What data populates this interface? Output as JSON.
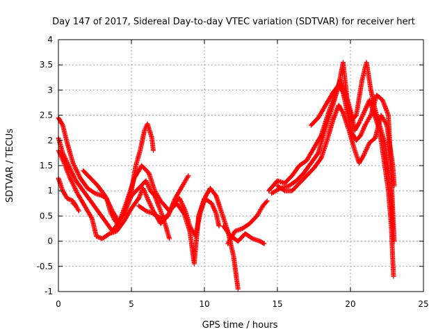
{
  "chart_data": {
    "type": "scatter",
    "title": "Day 147 of 2017, Sidereal Day-to-day VTEC variation (SDTVAR) for receiver hert",
    "xlabel": "GPS time / hours",
    "ylabel": "SDTVAR / TECUs",
    "xlim": [
      0,
      25
    ],
    "ylim": [
      -1,
      4
    ],
    "xticks": [
      "0",
      "5",
      "10",
      "15",
      "20",
      "25"
    ],
    "yticks": [
      "-1",
      "-0.5",
      "0",
      "0.5",
      "1",
      "1.5",
      "2",
      "2.5",
      "3",
      "3.5",
      "4"
    ],
    "grid": true,
    "marker": "+",
    "color": "#ff0000",
    "series": [
      {
        "points": [
          [
            0.0,
            1.25
          ],
          [
            0.3,
            1.0
          ],
          [
            0.6,
            0.85
          ],
          [
            1.0,
            0.8
          ],
          [
            1.4,
            0.6
          ],
          [
            1.2,
            0.7
          ],
          [
            1.0,
            0.75
          ]
        ]
      },
      {
        "points": [
          [
            0.0,
            2.45
          ],
          [
            0.3,
            2.3
          ],
          [
            0.6,
            1.95
          ],
          [
            1.0,
            1.55
          ],
          [
            1.5,
            1.25
          ],
          [
            2.0,
            1.05
          ],
          [
            2.5,
            0.95
          ],
          [
            3.0,
            0.9
          ],
          [
            3.3,
            0.85
          ],
          [
            3.6,
            0.55
          ],
          [
            4.0,
            0.35
          ],
          [
            4.5,
            0.55
          ],
          [
            5.0,
            0.9
          ],
          [
            5.5,
            1.05
          ],
          [
            6.0,
            1.2
          ],
          [
            6.3,
            1.0
          ],
          [
            6.6,
            0.9
          ],
          [
            7.0,
            0.6
          ],
          [
            7.3,
            0.35
          ],
          [
            7.6,
            0.05
          ]
        ]
      },
      {
        "points": [
          [
            0.0,
            2.05
          ],
          [
            0.3,
            1.75
          ],
          [
            0.7,
            1.5
          ],
          [
            1.2,
            1.2
          ],
          [
            1.7,
            1.0
          ],
          [
            2.2,
            0.8
          ],
          [
            2.7,
            0.6
          ],
          [
            3.2,
            0.4
          ],
          [
            3.7,
            0.2
          ],
          [
            4.2,
            0.4
          ],
          [
            4.7,
            0.8
          ],
          [
            5.2,
            1.25
          ],
          [
            5.7,
            1.5
          ],
          [
            6.2,
            1.35
          ],
          [
            6.6,
            1.0
          ],
          [
            7.0,
            0.8
          ],
          [
            7.6,
            0.6
          ],
          [
            8.1,
            0.75
          ],
          [
            8.6,
            0.55
          ],
          [
            9.0,
            0.2
          ],
          [
            9.3,
            -0.45
          ],
          [
            9.6,
            0.5
          ],
          [
            10.0,
            0.85
          ],
          [
            10.5,
            0.75
          ],
          [
            10.8,
            0.55
          ],
          [
            11.0,
            0.3
          ]
        ]
      },
      {
        "points": [
          [
            0.0,
            1.8
          ],
          [
            0.4,
            1.55
          ],
          [
            0.8,
            1.25
          ],
          [
            1.3,
            0.95
          ],
          [
            1.8,
            0.7
          ],
          [
            2.3,
            0.45
          ],
          [
            2.6,
            0.1
          ],
          [
            3.0,
            0.05
          ],
          [
            3.5,
            0.15
          ],
          [
            4.0,
            0.2
          ],
          [
            4.5,
            0.4
          ],
          [
            5.0,
            0.65
          ],
          [
            5.5,
            0.85
          ],
          [
            5.8,
            1.05
          ],
          [
            6.1,
            0.85
          ],
          [
            6.5,
            0.6
          ],
          [
            7.0,
            0.35
          ],
          [
            7.5,
            0.5
          ],
          [
            8.0,
            0.85
          ],
          [
            8.5,
            1.1
          ],
          [
            8.9,
            1.3
          ]
        ]
      },
      {
        "points": [
          [
            1.7,
            1.4
          ],
          [
            2.2,
            1.25
          ],
          [
            2.7,
            1.1
          ],
          [
            3.2,
            0.9
          ],
          [
            3.7,
            0.6
          ],
          [
            4.1,
            0.4
          ],
          [
            4.5,
            0.55
          ],
          [
            5.0,
            1.0
          ],
          [
            5.3,
            1.5
          ],
          [
            5.6,
            1.8
          ],
          [
            5.9,
            2.2
          ],
          [
            6.1,
            2.33
          ],
          [
            6.4,
            2.05
          ],
          [
            6.5,
            1.8
          ]
        ]
      },
      {
        "points": [
          [
            5.5,
            0.7
          ],
          [
            6.0,
            0.6
          ],
          [
            6.5,
            0.55
          ],
          [
            7.0,
            0.45
          ],
          [
            7.5,
            0.5
          ],
          [
            7.9,
            0.75
          ],
          [
            8.3,
            0.85
          ],
          [
            8.7,
            0.6
          ],
          [
            9.0,
            0.3
          ],
          [
            9.4,
            0.1
          ],
          [
            9.7,
            0.55
          ],
          [
            10.1,
            0.9
          ],
          [
            10.4,
            1.05
          ],
          [
            10.8,
            0.9
          ],
          [
            11.2,
            0.55
          ],
          [
            11.6,
            0.2
          ],
          [
            12.0,
            -0.3
          ],
          [
            12.3,
            -0.95
          ]
        ]
      },
      {
        "points": [
          [
            11.3,
            0.3
          ],
          [
            11.8,
            0.1
          ],
          [
            12.3,
            0.0
          ],
          [
            12.8,
            0.15
          ],
          [
            13.3,
            0.05
          ],
          [
            13.8,
            0.0
          ],
          [
            14.1,
            -0.05
          ]
        ]
      },
      {
        "points": [
          [
            11.6,
            -0.05
          ],
          [
            12.1,
            0.2
          ],
          [
            12.6,
            0.25
          ],
          [
            13.1,
            0.35
          ],
          [
            13.6,
            0.5
          ],
          [
            14.0,
            0.7
          ],
          [
            14.3,
            0.8
          ]
        ]
      },
      {
        "points": [
          [
            14.4,
            1.0
          ],
          [
            15.0,
            1.2
          ],
          [
            15.5,
            1.15
          ],
          [
            16.0,
            1.3
          ],
          [
            16.5,
            1.5
          ],
          [
            17.0,
            1.6
          ],
          [
            17.5,
            1.85
          ],
          [
            18.0,
            2.1
          ],
          [
            18.5,
            2.55
          ],
          [
            19.0,
            2.95
          ],
          [
            19.3,
            3.2
          ],
          [
            19.7,
            2.9
          ],
          [
            20.0,
            2.6
          ],
          [
            20.3,
            2.2
          ],
          [
            20.6,
            2.35
          ],
          [
            21.0,
            2.6
          ],
          [
            21.3,
            2.8
          ],
          [
            21.6,
            2.55
          ],
          [
            22.0,
            2.2
          ],
          [
            22.3,
            1.6
          ],
          [
            22.6,
            1.0
          ],
          [
            22.8,
            0.3
          ],
          [
            22.95,
            -0.7
          ]
        ]
      },
      {
        "points": [
          [
            14.6,
            0.95
          ],
          [
            15.2,
            1.05
          ],
          [
            15.8,
            1.1
          ],
          [
            16.3,
            1.2
          ],
          [
            16.8,
            1.35
          ],
          [
            17.3,
            1.55
          ],
          [
            17.8,
            1.75
          ],
          [
            18.3,
            2.25
          ],
          [
            18.8,
            2.7
          ],
          [
            19.2,
            3.1
          ],
          [
            19.5,
            3.55
          ],
          [
            19.8,
            2.75
          ],
          [
            20.1,
            2.4
          ],
          [
            20.4,
            2.5
          ],
          [
            20.8,
            3.2
          ],
          [
            21.1,
            3.55
          ],
          [
            21.4,
            3.0
          ],
          [
            21.7,
            2.6
          ],
          [
            22.0,
            2.3
          ],
          [
            22.4,
            1.9
          ],
          [
            22.8,
            0.8
          ],
          [
            22.9,
            0.25
          ]
        ]
      },
      {
        "points": [
          [
            15.0,
            1.1
          ],
          [
            15.5,
            1.0
          ],
          [
            16.0,
            1.0
          ],
          [
            16.5,
            1.15
          ],
          [
            17.0,
            1.3
          ],
          [
            17.5,
            1.45
          ],
          [
            18.0,
            1.65
          ],
          [
            18.4,
            2.0
          ],
          [
            18.8,
            2.4
          ],
          [
            19.2,
            2.7
          ],
          [
            19.5,
            2.55
          ],
          [
            19.9,
            2.2
          ],
          [
            20.3,
            1.8
          ],
          [
            20.6,
            1.55
          ],
          [
            20.9,
            1.7
          ],
          [
            21.3,
            1.95
          ],
          [
            21.7,
            2.05
          ],
          [
            22.1,
            2.5
          ],
          [
            22.5,
            2.3
          ],
          [
            22.9,
            1.5
          ],
          [
            23.0,
            1.1
          ]
        ]
      },
      {
        "points": [
          [
            17.3,
            2.3
          ],
          [
            17.8,
            2.45
          ],
          [
            18.3,
            2.7
          ],
          [
            18.8,
            2.95
          ],
          [
            19.2,
            3.1
          ],
          [
            19.5,
            2.95
          ],
          [
            19.8,
            2.55
          ],
          [
            20.1,
            2.15
          ],
          [
            20.4,
            2.0
          ],
          [
            20.7,
            2.1
          ],
          [
            21.0,
            2.3
          ],
          [
            21.4,
            2.5
          ],
          [
            21.8,
            2.9
          ],
          [
            22.2,
            2.8
          ],
          [
            22.6,
            2.5
          ],
          [
            22.9,
            0.6
          ],
          [
            23.0,
            0.0
          ]
        ]
      }
    ]
  }
}
